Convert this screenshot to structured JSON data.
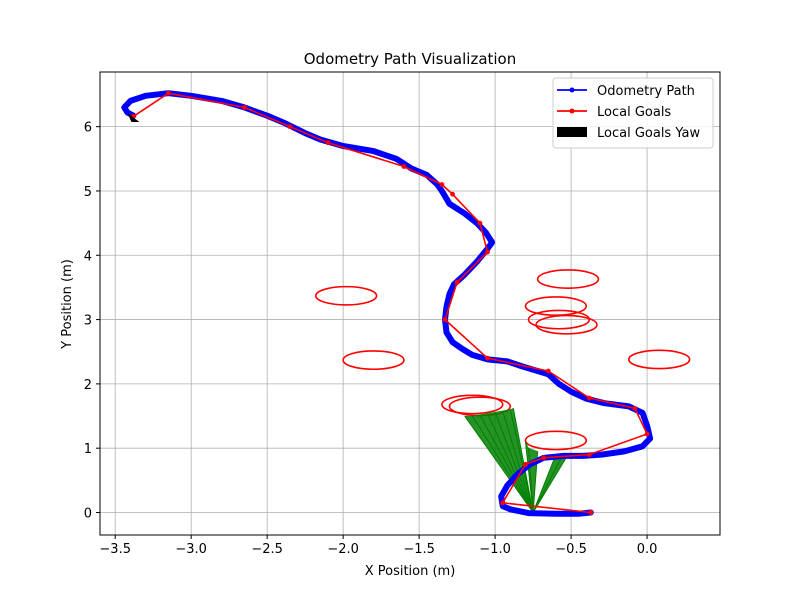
{
  "chart_data": {
    "type": "line",
    "title": "Odometry Path Visualization",
    "xlabel": "X Position (m)",
    "ylabel": "Y Position (m)",
    "xlim": [
      -3.6,
      0.48
    ],
    "ylim": [
      -0.35,
      6.85
    ],
    "xticks": [
      -3.5,
      -3.0,
      -2.5,
      -2.0,
      -1.5,
      -1.0,
      -0.5,
      0.0
    ],
    "xtick_labels": [
      "−3.5",
      "−3.0",
      "−2.5",
      "−2.0",
      "−1.5",
      "−1.0",
      "−0.5",
      "0.0"
    ],
    "yticks": [
      0,
      1,
      2,
      3,
      4,
      5,
      6
    ],
    "ytick_labels": [
      "0",
      "1",
      "2",
      "3",
      "4",
      "5",
      "6"
    ],
    "grid": true,
    "legend_position": "top-right",
    "legend": [
      {
        "label": "Odometry Path",
        "style": "line-marker",
        "color": "#0000ff"
      },
      {
        "label": "Local Goals",
        "style": "line-marker",
        "color": "#ff0000"
      },
      {
        "label": "Local Goals Yaw",
        "style": "patch",
        "color": "#000000"
      }
    ],
    "series": [
      {
        "name": "Odometry Path",
        "color": "#0000ff",
        "points": [
          [
            -0.37,
            0.0
          ],
          [
            -0.45,
            -0.02
          ],
          [
            -0.6,
            -0.02
          ],
          [
            -0.78,
            -0.01
          ],
          [
            -0.9,
            0.05
          ],
          [
            -0.95,
            0.1
          ],
          [
            -0.96,
            0.25
          ],
          [
            -0.92,
            0.42
          ],
          [
            -0.85,
            0.6
          ],
          [
            -0.77,
            0.75
          ],
          [
            -0.68,
            0.85
          ],
          [
            -0.55,
            0.88
          ],
          [
            -0.42,
            0.88
          ],
          [
            -0.3,
            0.9
          ],
          [
            -0.15,
            0.95
          ],
          [
            -0.03,
            1.03
          ],
          [
            0.02,
            1.15
          ],
          [
            0.0,
            1.35
          ],
          [
            -0.03,
            1.55
          ],
          [
            -0.12,
            1.65
          ],
          [
            -0.28,
            1.7
          ],
          [
            -0.4,
            1.77
          ],
          [
            -0.5,
            1.88
          ],
          [
            -0.58,
            2.0
          ],
          [
            -0.65,
            2.15
          ],
          [
            -0.72,
            2.2
          ],
          [
            -0.82,
            2.27
          ],
          [
            -0.92,
            2.35
          ],
          [
            -1.05,
            2.38
          ],
          [
            -1.15,
            2.45
          ],
          [
            -1.22,
            2.55
          ],
          [
            -1.28,
            2.65
          ],
          [
            -1.32,
            2.8
          ],
          [
            -1.33,
            3.0
          ],
          [
            -1.32,
            3.2
          ],
          [
            -1.3,
            3.4
          ],
          [
            -1.27,
            3.55
          ],
          [
            -1.2,
            3.7
          ],
          [
            -1.12,
            3.9
          ],
          [
            -1.05,
            4.1
          ],
          [
            -1.02,
            4.2
          ],
          [
            -1.06,
            4.35
          ],
          [
            -1.12,
            4.5
          ],
          [
            -1.2,
            4.65
          ],
          [
            -1.3,
            4.8
          ],
          [
            -1.35,
            5.0
          ],
          [
            -1.38,
            5.1
          ],
          [
            -1.45,
            5.25
          ],
          [
            -1.55,
            5.35
          ],
          [
            -1.65,
            5.5
          ],
          [
            -1.8,
            5.62
          ],
          [
            -2.0,
            5.7
          ],
          [
            -2.15,
            5.8
          ],
          [
            -2.25,
            5.9
          ],
          [
            -2.38,
            6.05
          ],
          [
            -2.5,
            6.17
          ],
          [
            -2.65,
            6.3
          ],
          [
            -2.8,
            6.4
          ],
          [
            -3.0,
            6.48
          ],
          [
            -3.15,
            6.52
          ],
          [
            -3.3,
            6.48
          ],
          [
            -3.4,
            6.4
          ],
          [
            -3.44,
            6.3
          ],
          [
            -3.42,
            6.22
          ],
          [
            -3.38,
            6.17
          ]
        ]
      },
      {
        "name": "Local Goals",
        "color": "#ff0000",
        "points": [
          [
            -0.37,
            0.0
          ],
          [
            -0.95,
            0.15
          ],
          [
            -0.8,
            0.75
          ],
          [
            -0.68,
            0.85
          ],
          [
            -0.38,
            0.9
          ],
          [
            0.0,
            1.22
          ],
          [
            -0.08,
            1.62
          ],
          [
            -0.38,
            1.78
          ],
          [
            -0.65,
            2.2
          ],
          [
            -1.05,
            2.4
          ],
          [
            -1.33,
            3.0
          ],
          [
            -1.25,
            3.58
          ],
          [
            -1.05,
            4.05
          ],
          [
            -1.1,
            4.5
          ],
          [
            -1.28,
            4.95
          ],
          [
            -1.35,
            5.1
          ],
          [
            -1.6,
            5.38
          ],
          [
            -2.1,
            5.75
          ],
          [
            -2.35,
            6.0
          ],
          [
            -2.65,
            6.3
          ],
          [
            -3.15,
            6.52
          ],
          [
            -3.38,
            6.16
          ]
        ]
      }
    ],
    "goal_circles": [
      {
        "x": -0.52,
        "y": 3.63,
        "rx": 0.2,
        "ry": 0.19
      },
      {
        "x": -0.6,
        "y": 3.21,
        "rx": 0.2,
        "ry": 0.19
      },
      {
        "x": -0.58,
        "y": 3.0,
        "rx": 0.2,
        "ry": 0.19
      },
      {
        "x": -0.53,
        "y": 2.92,
        "rx": 0.2,
        "ry": 0.19
      },
      {
        "x": -1.98,
        "y": 3.37,
        "rx": 0.2,
        "ry": 0.19
      },
      {
        "x": -1.8,
        "y": 2.37,
        "rx": 0.2,
        "ry": 0.19
      },
      {
        "x": 0.08,
        "y": 2.38,
        "rx": 0.2,
        "ry": 0.19
      },
      {
        "x": -1.15,
        "y": 1.68,
        "rx": 0.2,
        "ry": 0.19
      },
      {
        "x": -1.1,
        "y": 1.65,
        "rx": 0.2,
        "ry": 0.19
      },
      {
        "x": -0.6,
        "y": 1.12,
        "rx": 0.2,
        "ry": 0.19
      }
    ],
    "yaw_fans": [
      {
        "origin": [
          -0.75,
          0.0
        ],
        "tips": [
          [
            -1.2,
            1.5
          ],
          [
            -1.15,
            1.5
          ],
          [
            -1.1,
            1.52
          ],
          [
            -1.05,
            1.54
          ],
          [
            -1.0,
            1.56
          ],
          [
            -0.95,
            1.58
          ],
          [
            -0.9,
            1.6
          ],
          [
            -0.88,
            1.62
          ]
        ],
        "color": "#008000"
      },
      {
        "origin": [
          -0.75,
          0.0
        ],
        "tips": [
          [
            -0.8,
            1.1
          ],
          [
            -0.78,
            1.0
          ],
          [
            -0.72,
            0.95
          ]
        ],
        "color": "#008000"
      },
      {
        "origin": [
          -0.75,
          0.0
        ],
        "tips": [
          [
            -0.6,
            0.9
          ],
          [
            -0.55,
            0.92
          ],
          [
            -0.52,
            0.9
          ]
        ],
        "color": "#008000"
      }
    ],
    "yaw_arrow": {
      "x": -3.38,
      "y": 6.12,
      "color": "#000000"
    }
  }
}
